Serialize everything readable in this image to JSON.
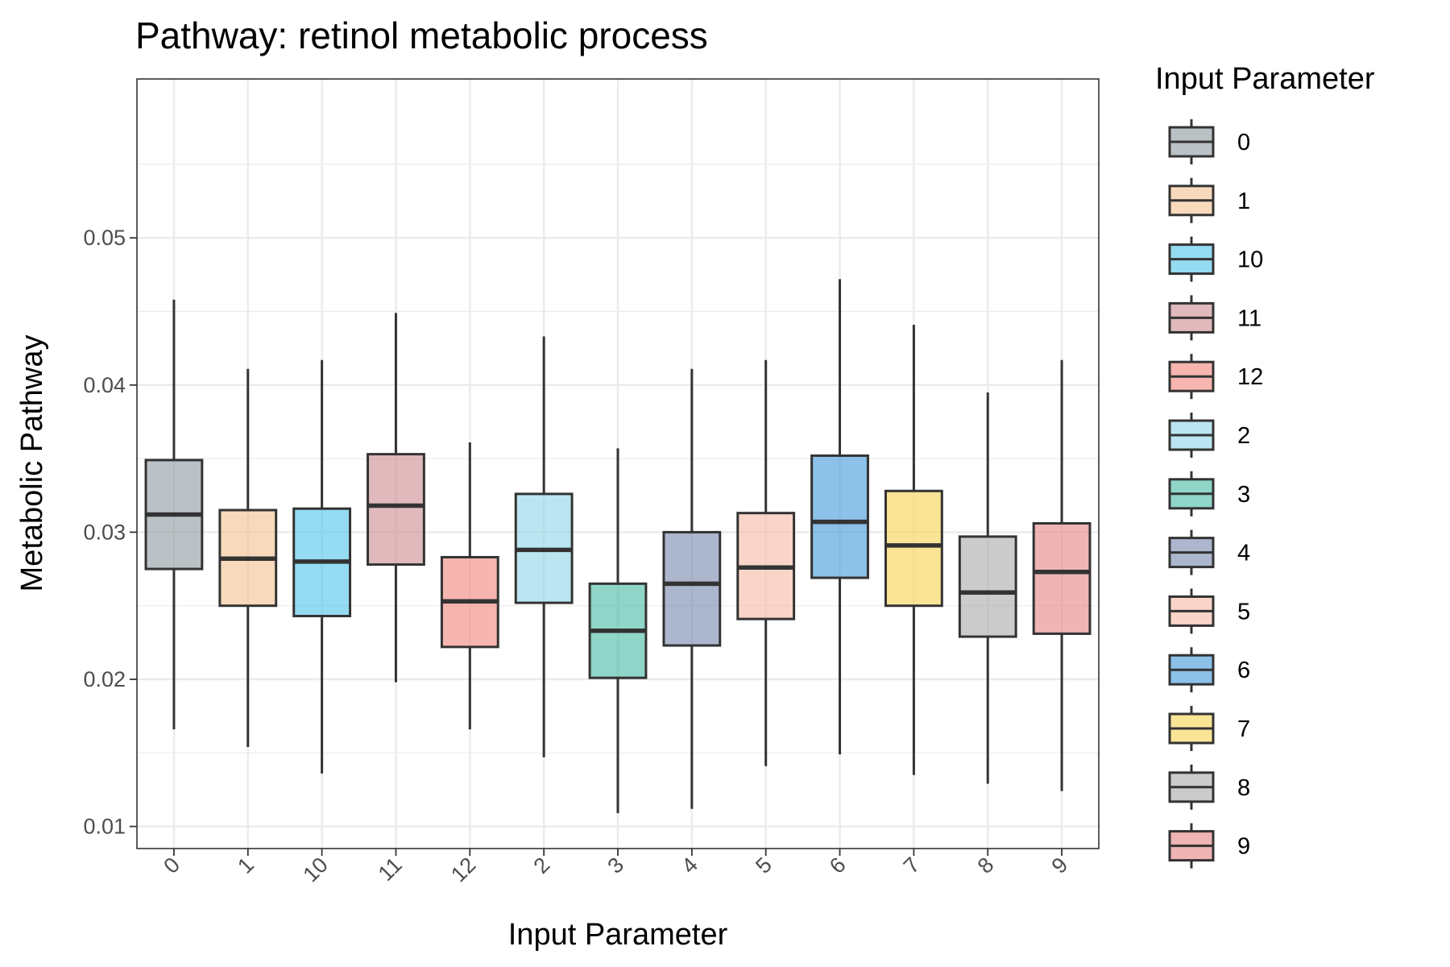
{
  "chart_data": {
    "type": "box",
    "title": "Pathway: retinol metabolic process",
    "xlabel": "Input Parameter",
    "ylabel": "Metabolic Pathway",
    "ylim": [
      0.0085,
      0.0608
    ],
    "yticks": [
      0.01,
      0.02,
      0.03,
      0.04,
      0.05
    ],
    "ytick_labels": [
      "0.01",
      "0.02",
      "0.03",
      "0.04",
      "0.05"
    ],
    "grid": true,
    "legend": {
      "title": "Input Parameter",
      "position": "right"
    },
    "categories": [
      "0",
      "1",
      "10",
      "11",
      "12",
      "2",
      "3",
      "4",
      "5",
      "6",
      "7",
      "8",
      "9"
    ],
    "boxes": [
      {
        "category": "0",
        "min": 0.0166,
        "q1": 0.0275,
        "median": 0.0312,
        "q3": 0.0349,
        "max": 0.0458,
        "color": "#8e999f"
      },
      {
        "category": "1",
        "min": 0.0154,
        "q1": 0.025,
        "median": 0.0282,
        "q3": 0.0315,
        "max": 0.0411,
        "color": "#f5c08f"
      },
      {
        "category": "10",
        "min": 0.0136,
        "q1": 0.0243,
        "median": 0.028,
        "q3": 0.0316,
        "max": 0.0417,
        "color": "#4fc3ea"
      },
      {
        "category": "11",
        "min": 0.0198,
        "q1": 0.0278,
        "median": 0.0318,
        "q3": 0.0353,
        "max": 0.0449,
        "color": "#c98a90"
      },
      {
        "category": "12",
        "min": 0.0166,
        "q1": 0.0222,
        "median": 0.0253,
        "q3": 0.0283,
        "max": 0.0361,
        "color": "#f08378"
      },
      {
        "category": "2",
        "min": 0.0147,
        "q1": 0.0252,
        "median": 0.0288,
        "q3": 0.0326,
        "max": 0.0433,
        "color": "#8dd6e8"
      },
      {
        "category": "3",
        "min": 0.0109,
        "q1": 0.0201,
        "median": 0.0233,
        "q3": 0.0265,
        "max": 0.0357,
        "color": "#45bba4"
      },
      {
        "category": "4",
        "min": 0.0112,
        "q1": 0.0223,
        "median": 0.0265,
        "q3": 0.03,
        "max": 0.0411,
        "color": "#7586ac"
      },
      {
        "category": "5",
        "min": 0.0141,
        "q1": 0.0241,
        "median": 0.0276,
        "q3": 0.0313,
        "max": 0.0417,
        "color": "#f5b8a5"
      },
      {
        "category": "6",
        "min": 0.0149,
        "q1": 0.0269,
        "median": 0.0307,
        "q3": 0.0352,
        "max": 0.0472,
        "color": "#3f97d8"
      },
      {
        "category": "7",
        "min": 0.0135,
        "q1": 0.025,
        "median": 0.0291,
        "q3": 0.0328,
        "max": 0.0441,
        "color": "#f6d452"
      },
      {
        "category": "8",
        "min": 0.0129,
        "q1": 0.0229,
        "median": 0.0259,
        "q3": 0.0297,
        "max": 0.0395,
        "color": "#a8a8a8"
      },
      {
        "category": "9",
        "min": 0.0124,
        "q1": 0.0231,
        "median": 0.0273,
        "q3": 0.0306,
        "max": 0.0417,
        "color": "#e48282"
      }
    ]
  }
}
